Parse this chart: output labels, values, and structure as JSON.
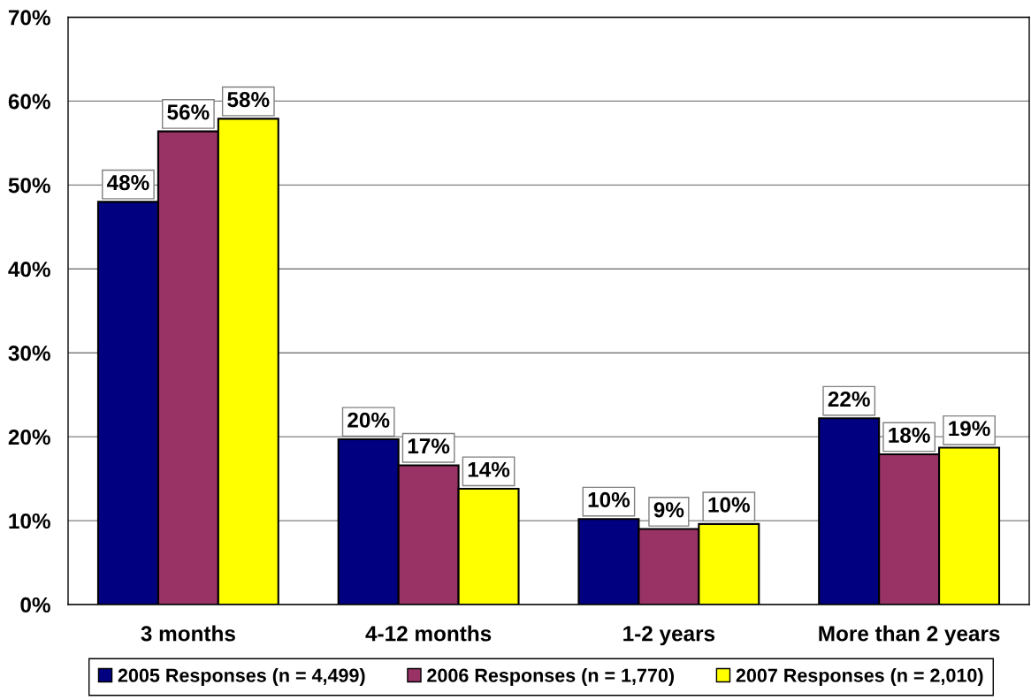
{
  "chart_data": {
    "type": "bar",
    "categories": [
      "3 months",
      "4-12 months",
      "1-2 years",
      "More than 2 years"
    ],
    "series": [
      {
        "name": "2005 Responses (n = 4,499)",
        "color": "#000080",
        "values": [
          48.0,
          19.7,
          10.2,
          22.2
        ],
        "value_labels": [
          "48%",
          "20%",
          "10%",
          "22%"
        ]
      },
      {
        "name": "2006 Responses (n = 1,770)",
        "color": "#993366",
        "values": [
          56.4,
          16.6,
          9.0,
          17.9
        ],
        "value_labels": [
          "56%",
          "17%",
          "9%",
          "18%"
        ]
      },
      {
        "name": "2007 Responses (n = 2,010)",
        "color": "#ffff00",
        "values": [
          57.9,
          13.8,
          9.6,
          18.7
        ],
        "value_labels": [
          "58%",
          "14%",
          "10%",
          "19%"
        ]
      }
    ],
    "ylim": [
      0,
      70
    ],
    "yticks": [
      {
        "value": 0,
        "label": "0%"
      },
      {
        "value": 10,
        "label": "10%"
      },
      {
        "value": 20,
        "label": "20%"
      },
      {
        "value": 30,
        "label": "30%"
      },
      {
        "value": 40,
        "label": "40%"
      },
      {
        "value": 50,
        "label": "50%"
      },
      {
        "value": 60,
        "label": "60%"
      },
      {
        "value": 70,
        "label": "70%"
      }
    ],
    "grid": "y",
    "legend": "bottom"
  }
}
